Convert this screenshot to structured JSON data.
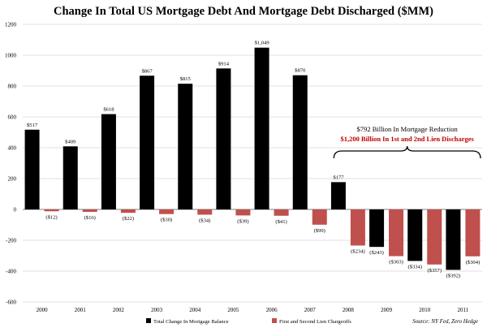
{
  "colors": {
    "series_black": "#000000",
    "series_red": "#c0504d",
    "annotation_red": "#c00000",
    "grid": "#d9d9d9",
    "zero_line": "#808080"
  },
  "chart_data": {
    "type": "bar",
    "title": "Change In Total US Mortgage Debt And Mortgage Debt Discharged ($MM)",
    "xlabel": "",
    "ylabel": "",
    "ylim": [
      -600,
      1200
    ],
    "yticks": [
      -600,
      -400,
      -200,
      0,
      200,
      400,
      600,
      800,
      1000,
      1200
    ],
    "grid": true,
    "categories": [
      "2000",
      "2001",
      "2002",
      "2003",
      "2004",
      "2005",
      "2006",
      "2007",
      "2008",
      "2009",
      "2010",
      "2011"
    ],
    "series": [
      {
        "name": "Total Change In Mortgage Balance",
        "color": "#000000",
        "values": [
          517,
          409,
          618,
          867,
          815,
          914,
          1049,
          870,
          177,
          -243,
          -334,
          -392
        ],
        "labels": [
          "$517",
          "$409",
          "$618",
          "$867",
          "$815",
          "$914",
          "$1,049",
          "$870",
          "$177",
          "($243)",
          "($334)",
          "($392)"
        ]
      },
      {
        "name": "First and Second Lien Chargeoffs",
        "color": "#c0504d",
        "values": [
          -12,
          -16,
          -22,
          -30,
          -34,
          -39,
          -41,
          -99,
          -234,
          -303,
          -357,
          -304
        ],
        "labels": [
          "($12)",
          "($16)",
          "($22)",
          "($30)",
          "($34)",
          "($39)",
          "($41)",
          "($99)",
          "($234)",
          "($303)",
          "($357)",
          "($304)"
        ]
      }
    ],
    "legend_position": "bottom",
    "annotation": {
      "line1": "$792 Billion In Mortgage Reduction",
      "line2": "$1,200 Billion In 1st and 2nd Lien Discharges",
      "spans_categories": [
        "2008",
        "2011"
      ]
    },
    "source": "Source: NY Fed, Zero Hedge"
  }
}
